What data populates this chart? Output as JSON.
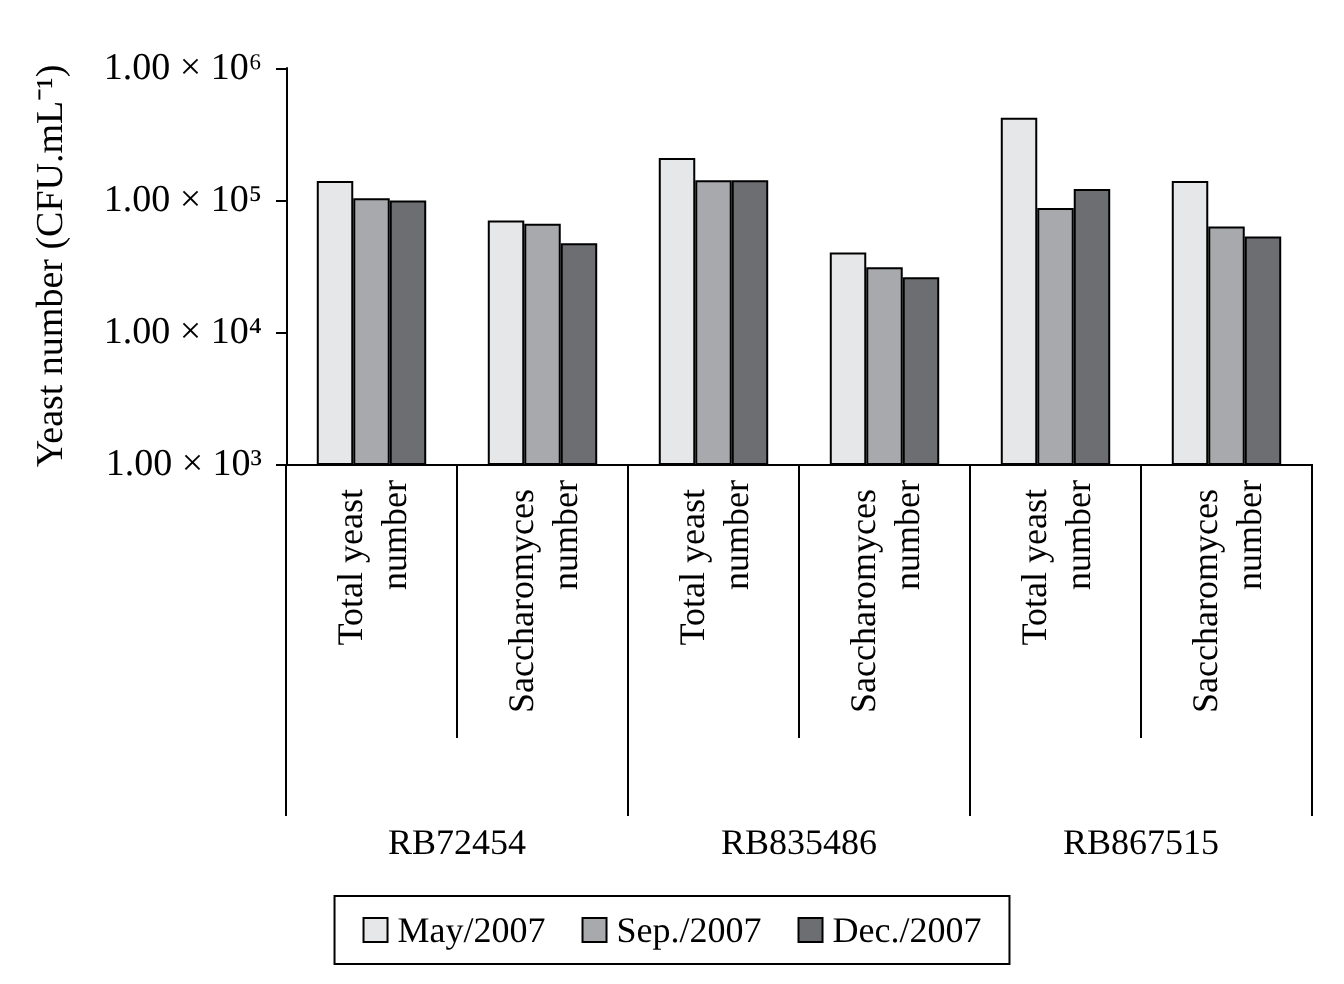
{
  "chart_data": {
    "type": "bar",
    "ylabel": "Yeast number (CFU.mL⁻¹)",
    "categories": [
      "Total yeast number",
      "Saccharomyces number",
      "Total yeast number",
      "Saccharomyces number",
      "Total yeast number",
      "Saccharomyces number"
    ],
    "series": [
      {
        "name": "May/2007",
        "color": "#e6e7e9",
        "values": [
          139000,
          70000,
          208000,
          40000,
          420000,
          139000
        ]
      },
      {
        "name": "Sep./2007",
        "color": "#a7a9ac",
        "values": [
          103000,
          66000,
          141000,
          31000,
          87000,
          63000
        ]
      },
      {
        "name": "Dec./2007",
        "color": "#6d6e71",
        "values": [
          99000,
          47000,
          141000,
          26000,
          121000,
          53000
        ]
      }
    ],
    "annotations": [
      "RB72454",
      "RB835486",
      "RB867515"
    ],
    "log": true,
    "ylim": [
      1000,
      1000000
    ],
    "yticks": [
      {
        "value": 1000,
        "label": "1.00 × 10³"
      },
      {
        "value": 10000,
        "label": "1.00 × 10⁴"
      },
      {
        "value": 100000,
        "label": "1.00 × 10⁵"
      },
      {
        "value": 1000000,
        "label": "1.00 × 10⁶"
      }
    ],
    "grid": false,
    "legend": "bottom"
  }
}
